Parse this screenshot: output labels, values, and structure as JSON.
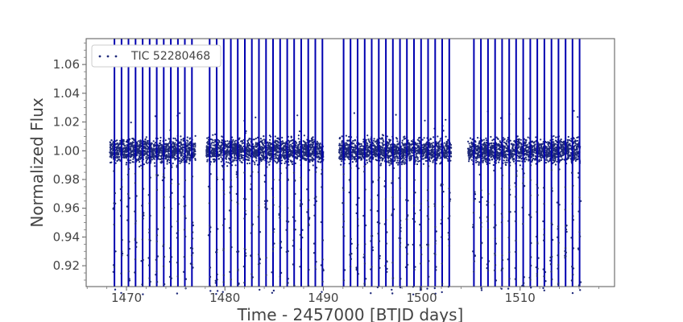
{
  "chart_data": {
    "type": "scatter",
    "xlabel": "Time - 2457000 [BTJD days]",
    "ylabel": "Normalized Flux",
    "xlim": [
      1465.9,
      1519.6
    ],
    "ylim": [
      0.9055,
      1.078
    ],
    "x_ticks": [
      1470,
      1480,
      1490,
      1500,
      1510
    ],
    "y_ticks": [
      0.92,
      0.94,
      0.96,
      0.98,
      1.0,
      1.02,
      1.04,
      1.06
    ],
    "y_tick_labels": [
      "0.92",
      "0.94",
      "0.96",
      "0.98",
      "1.00",
      "1.02",
      "1.04",
      "1.06"
    ],
    "grid": false,
    "legend": {
      "position": "top-left",
      "entries": [
        "TIC 52280468"
      ]
    },
    "series": [
      {
        "name": "TIC 52280468",
        "marker": "dot",
        "color": "#1f2a7a",
        "baseline_flux": 1.0,
        "scatter_band": [
          0.994,
          1.006
        ],
        "segments": [
          {
            "start": 1468.3,
            "end": 1477.0
          },
          {
            "start": 1478.1,
            "end": 1490.0
          },
          {
            "start": 1491.6,
            "end": 1503.0
          },
          {
            "start": 1504.7,
            "end": 1516.1
          }
        ],
        "transit_times": [
          1468.77,
          1469.49,
          1470.2,
          1470.92,
          1471.64,
          1472.35,
          1473.07,
          1473.78,
          1474.5,
          1475.22,
          1475.93,
          1476.65,
          1478.45,
          1479.16,
          1479.88,
          1480.6,
          1481.31,
          1482.03,
          1482.74,
          1483.46,
          1484.18,
          1484.89,
          1485.61,
          1486.33,
          1487.04,
          1487.76,
          1488.47,
          1489.19,
          1489.91,
          1492.06,
          1492.77,
          1493.49,
          1494.21,
          1494.92,
          1495.64,
          1496.36,
          1497.07,
          1497.79,
          1498.5,
          1499.22,
          1499.94,
          1500.65,
          1501.37,
          1502.08,
          1502.8,
          1505.31,
          1506.02,
          1506.74,
          1507.46,
          1508.17,
          1508.89,
          1509.6,
          1510.32,
          1511.04,
          1511.75,
          1512.47,
          1513.19,
          1513.9,
          1514.62,
          1515.33,
          1516.05
        ],
        "transit_line_color": "#0000b0",
        "transit_depth_min_flux": 0.9
      }
    ]
  }
}
